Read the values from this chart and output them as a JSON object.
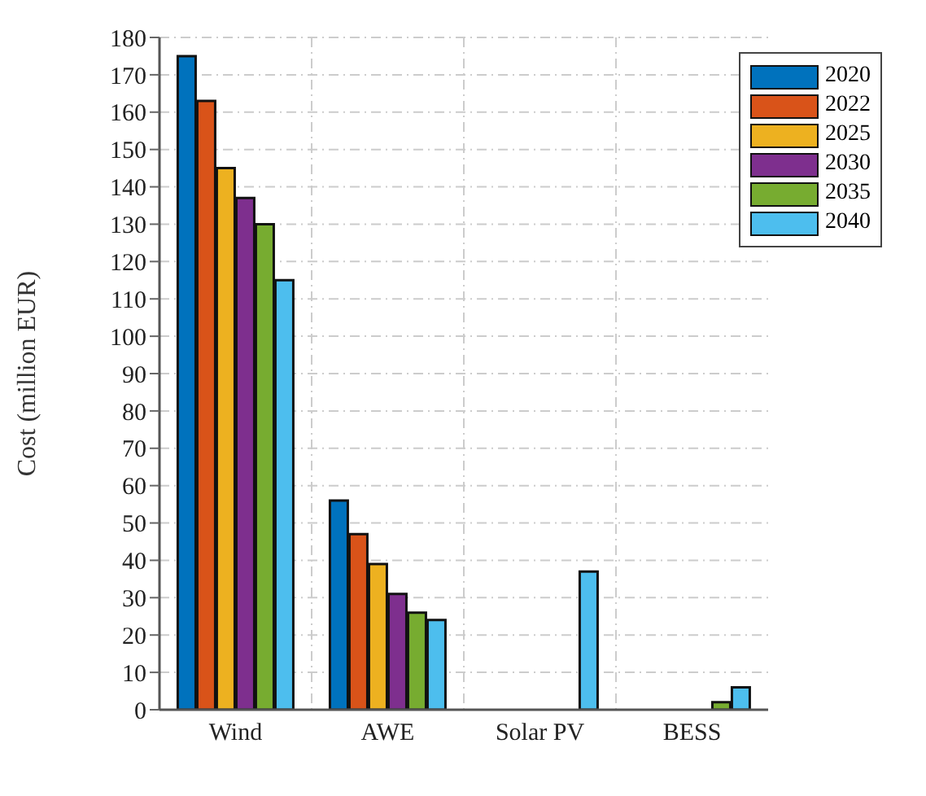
{
  "chart_data": {
    "type": "bar",
    "ylabel": "Cost (million EUR)",
    "categories": [
      "Wind",
      "AWE",
      "Solar PV",
      "BESS"
    ],
    "series": [
      {
        "name": "2020",
        "color": "#0072bd",
        "values": [
          175,
          56,
          null,
          null
        ]
      },
      {
        "name": "2022",
        "color": "#d95319",
        "values": [
          163,
          47,
          null,
          null
        ]
      },
      {
        "name": "2025",
        "color": "#edb120",
        "values": [
          145,
          39,
          null,
          null
        ]
      },
      {
        "name": "2030",
        "color": "#7e2f8e",
        "values": [
          137,
          31,
          null,
          null
        ]
      },
      {
        "name": "2035",
        "color": "#77ac30",
        "values": [
          130,
          26,
          null,
          2
        ]
      },
      {
        "name": "2040",
        "color": "#4dbeee",
        "values": [
          115,
          24,
          37,
          6
        ]
      }
    ],
    "ylim": [
      0,
      180
    ],
    "yticks": [
      0,
      10,
      20,
      30,
      40,
      50,
      60,
      70,
      80,
      90,
      100,
      110,
      120,
      130,
      140,
      150,
      160,
      170,
      180
    ],
    "grid": true,
    "legend": "top right"
  }
}
